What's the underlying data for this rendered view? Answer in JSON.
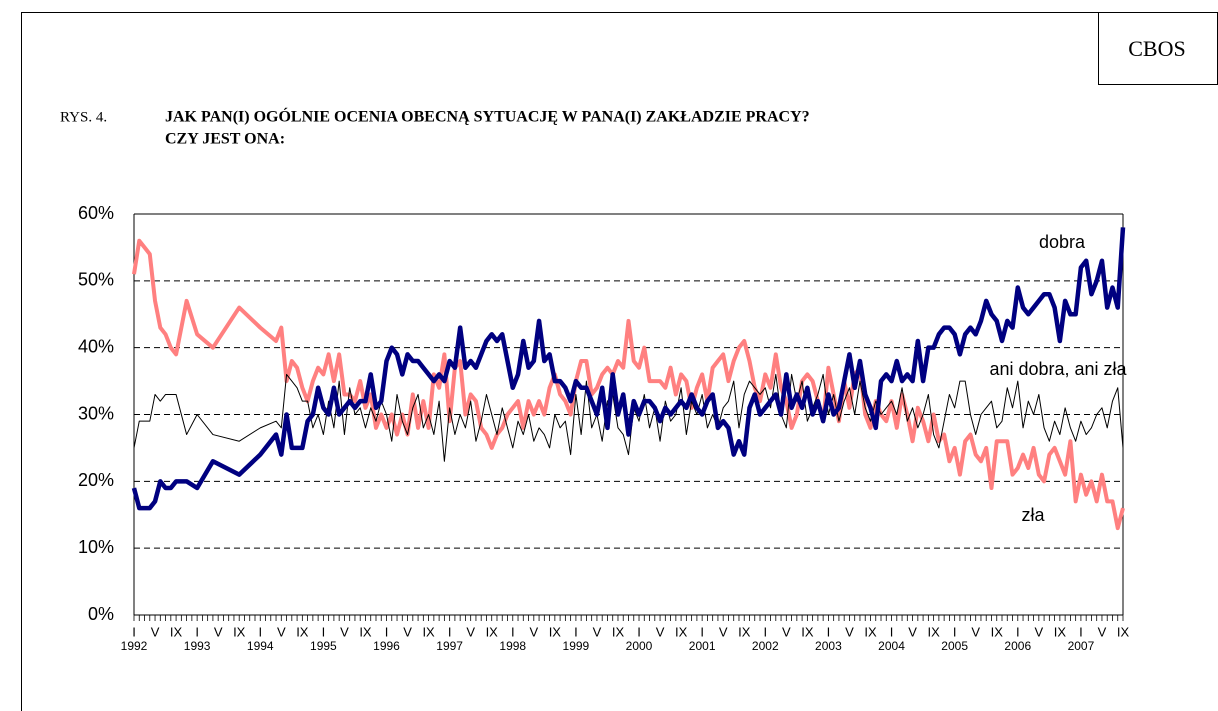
{
  "chart_data": {
    "type": "line",
    "badge": "CBOS",
    "figure_label": "RYS. 4.",
    "title": [
      "JAK PAN(I) OGÓLNIE OCENIA OBECNĄ SYTUACJĘ W PANA(I) ZAKŁADZIE PRACY?",
      "CZY JEST ONA:"
    ],
    "x": [
      "1992-01",
      "1992-02",
      "1992-03",
      "1992-04",
      "1992-05",
      "1992-06",
      "1992-07",
      "1992-08",
      "1992-09",
      "1992-11",
      "1993-01",
      "1993-04",
      "1993-09",
      "1994-01",
      "1994-04",
      "1994-05",
      "1994-06",
      "1994-07",
      "1994-08",
      "1994-09",
      "1994-10",
      "1994-11",
      "1994-12",
      "1995-01",
      "1995-02",
      "1995-03",
      "1995-04",
      "1995-05",
      "1995-06",
      "1995-07",
      "1995-08",
      "1995-09",
      "1995-10",
      "1995-11",
      "1995-12",
      "1996-01",
      "1996-02",
      "1996-03",
      "1996-04",
      "1996-05",
      "1996-06",
      "1996-07",
      "1996-08",
      "1996-09",
      "1996-10",
      "1996-11",
      "1996-12",
      "1997-01",
      "1997-02",
      "1997-03",
      "1997-04",
      "1997-05",
      "1997-06",
      "1997-07",
      "1997-08",
      "1997-09",
      "1997-10",
      "1997-11",
      "1997-12",
      "1998-01",
      "1998-02",
      "1998-03",
      "1998-04",
      "1998-05",
      "1998-06",
      "1998-07",
      "1998-08",
      "1998-09",
      "1998-10",
      "1998-11",
      "1998-12",
      "1999-01",
      "1999-02",
      "1999-03",
      "1999-04",
      "1999-05",
      "1999-06",
      "1999-07",
      "1999-08",
      "1999-09",
      "1999-10",
      "1999-11",
      "1999-12",
      "2000-01",
      "2000-02",
      "2000-03",
      "2000-04",
      "2000-05",
      "2000-06",
      "2000-07",
      "2000-08",
      "2000-09",
      "2000-10",
      "2000-11",
      "2000-12",
      "2001-01",
      "2001-02",
      "2001-03",
      "2001-04",
      "2001-05",
      "2001-06",
      "2001-07",
      "2001-08",
      "2001-09",
      "2001-10",
      "2001-11",
      "2001-12",
      "2002-01",
      "2002-02",
      "2002-03",
      "2002-04",
      "2002-05",
      "2002-06",
      "2002-07",
      "2002-08",
      "2002-09",
      "2002-10",
      "2002-11",
      "2002-12",
      "2003-01",
      "2003-02",
      "2003-03",
      "2003-04",
      "2003-05",
      "2003-06",
      "2003-07",
      "2003-08",
      "2003-09",
      "2003-10",
      "2003-11",
      "2003-12",
      "2004-01",
      "2004-02",
      "2004-03",
      "2004-04",
      "2004-05",
      "2004-06",
      "2004-07",
      "2004-08",
      "2004-09",
      "2004-10",
      "2004-11",
      "2004-12",
      "2005-01",
      "2005-02",
      "2005-03",
      "2005-04",
      "2005-05",
      "2005-06",
      "2005-07",
      "2005-08",
      "2005-09",
      "2005-10",
      "2005-11",
      "2005-12",
      "2006-01",
      "2006-02",
      "2006-03",
      "2006-04",
      "2006-05",
      "2006-06",
      "2006-07",
      "2006-08",
      "2006-09",
      "2006-10",
      "2006-11",
      "2006-12",
      "2007-01",
      "2007-02",
      "2007-03",
      "2007-04",
      "2007-05",
      "2007-06",
      "2007-07",
      "2007-08",
      "2007-09"
    ],
    "series": [
      {
        "name": "dobra",
        "color": "#000080",
        "width": 4.5,
        "values": [
          19,
          16,
          16,
          16,
          17,
          20,
          19,
          19,
          20,
          20,
          19,
          23,
          21,
          24,
          27,
          24,
          30,
          25,
          25,
          25,
          29,
          30,
          34,
          31,
          30,
          34,
          30,
          31,
          32,
          31,
          32,
          32,
          36,
          31,
          32,
          38,
          40,
          39,
          36,
          39,
          38,
          38,
          37,
          36,
          35,
          36,
          35,
          38,
          37,
          43,
          37,
          38,
          37,
          39,
          41,
          42,
          41,
          42,
          38,
          34,
          36,
          41,
          37,
          38,
          44,
          38,
          39,
          35,
          35,
          34,
          32,
          35,
          34,
          34,
          32,
          30,
          34,
          28,
          36,
          30,
          33,
          27,
          32,
          30,
          32,
          32,
          31,
          29,
          31,
          30,
          31,
          32,
          31,
          33,
          31,
          30,
          32,
          33,
          28,
          29,
          28,
          24,
          26,
          24,
          31,
          33,
          30,
          31,
          32,
          33,
          30,
          36,
          31,
          33,
          31,
          34,
          30,
          32,
          29,
          33,
          30,
          31,
          35,
          39,
          34,
          38,
          33,
          31,
          28,
          35,
          36,
          35,
          38,
          35,
          36,
          35,
          41,
          35,
          40,
          40,
          42,
          43,
          43,
          42,
          39,
          42,
          43,
          42,
          44,
          47,
          45,
          44,
          41,
          44,
          43,
          49,
          46,
          45,
          46,
          47,
          48,
          48,
          46,
          41,
          47,
          45,
          45,
          52,
          53,
          48,
          50,
          53,
          46,
          49,
          46,
          58
        ]
      },
      {
        "name": "zła",
        "color": "#ff8080",
        "width": 4,
        "values": [
          51,
          56,
          55,
          54,
          47,
          43,
          42,
          40,
          39,
          47,
          42,
          40,
          46,
          43,
          41,
          43,
          35,
          38,
          37,
          34,
          32,
          35,
          37,
          36,
          39,
          35,
          39,
          33,
          33,
          32,
          35,
          31,
          33,
          28,
          30,
          28,
          30,
          27,
          30,
          27,
          33,
          28,
          32,
          28,
          36,
          34,
          39,
          29,
          37,
          38,
          30,
          33,
          32,
          28,
          27,
          25,
          27,
          28,
          30,
          31,
          32,
          28,
          32,
          30,
          32,
          30,
          34,
          36,
          33,
          32,
          30,
          35,
          38,
          38,
          33,
          34,
          36,
          37,
          36,
          38,
          37,
          44,
          38,
          37,
          40,
          35,
          35,
          35,
          34,
          37,
          33,
          36,
          35,
          31,
          34,
          36,
          32,
          37,
          38,
          39,
          35,
          38,
          40,
          41,
          38,
          34,
          32,
          36,
          34,
          39,
          34,
          32,
          28,
          30,
          35,
          36,
          35,
          32,
          29,
          37,
          33,
          29,
          35,
          31,
          36,
          37,
          30,
          28,
          32,
          30,
          29,
          32,
          28,
          33,
          30,
          26,
          31,
          29,
          26,
          30,
          26,
          27,
          23,
          25,
          21,
          26,
          27,
          24,
          23,
          25,
          19,
          26,
          26,
          26,
          21,
          22,
          24,
          22,
          25,
          21,
          20,
          24,
          25,
          23,
          21,
          26,
          17,
          21,
          18,
          20,
          17,
          21,
          17,
          17,
          13,
          16
        ]
      },
      {
        "name": "ani dobra, ani zła",
        "color": "#000000",
        "width": 1,
        "values": [
          25,
          29,
          29,
          29,
          33,
          32,
          33,
          33,
          33,
          27,
          30,
          27,
          26,
          28,
          29,
          28,
          36,
          35,
          34,
          32,
          32,
          28,
          30,
          27,
          32,
          28,
          35,
          27,
          34,
          30,
          31,
          28,
          31,
          29,
          32,
          30,
          26,
          33,
          29,
          27,
          31,
          33,
          28,
          30,
          27,
          32,
          23,
          31,
          27,
          30,
          28,
          32,
          26,
          29,
          33,
          30,
          27,
          31,
          28,
          25,
          29,
          27,
          30,
          26,
          28,
          27,
          25,
          30,
          28,
          29,
          24,
          33,
          27,
          35,
          28,
          30,
          26,
          32,
          33,
          28,
          27,
          24,
          31,
          29,
          33,
          28,
          31,
          26,
          32,
          29,
          30,
          34,
          27,
          32,
          30,
          33,
          28,
          30,
          28,
          31,
          32,
          35,
          28,
          33,
          35,
          34,
          33,
          34,
          31,
          36,
          30,
          28,
          36,
          32,
          35,
          29,
          31,
          33,
          36,
          30,
          33,
          29,
          32,
          34,
          30,
          35,
          31,
          29,
          32,
          30,
          31,
          32,
          30,
          34,
          29,
          31,
          28,
          30,
          33,
          27,
          25,
          29,
          33,
          31,
          35,
          35,
          30,
          27,
          30,
          31,
          32,
          28,
          29,
          34,
          31,
          35,
          28,
          32,
          30,
          33,
          28,
          26,
          29,
          27,
          31,
          28,
          26,
          29,
          27,
          28,
          30,
          31,
          28,
          32,
          34,
          25
        ]
      }
    ],
    "xlim": [
      "1992-01",
      "2007-09"
    ],
    "xticks": [
      {
        "value": "1992-01",
        "label": "I"
      },
      {
        "value": "1992-05",
        "label": "V"
      },
      {
        "value": "1992-09",
        "label": "IX"
      },
      {
        "value": "1993-01",
        "label": "I"
      },
      {
        "value": "1993-05",
        "label": "V"
      },
      {
        "value": "1993-09",
        "label": "IX"
      },
      {
        "value": "1994-01",
        "label": "I"
      },
      {
        "value": "1994-05",
        "label": "V"
      },
      {
        "value": "1994-09",
        "label": "IX"
      },
      {
        "value": "1995-01",
        "label": "I"
      },
      {
        "value": "1995-05",
        "label": "V"
      },
      {
        "value": "1995-09",
        "label": "IX"
      },
      {
        "value": "1996-01",
        "label": "I"
      },
      {
        "value": "1996-05",
        "label": "V"
      },
      {
        "value": "1996-09",
        "label": "IX"
      },
      {
        "value": "1997-01",
        "label": "I"
      },
      {
        "value": "1997-05",
        "label": "V"
      },
      {
        "value": "1997-09",
        "label": "IX"
      },
      {
        "value": "1998-01",
        "label": "I"
      },
      {
        "value": "1998-05",
        "label": "V"
      },
      {
        "value": "1998-09",
        "label": "IX"
      },
      {
        "value": "1999-01",
        "label": "I"
      },
      {
        "value": "1999-05",
        "label": "V"
      },
      {
        "value": "1999-09",
        "label": "IX"
      },
      {
        "value": "2000-01",
        "label": "I"
      },
      {
        "value": "2000-05",
        "label": "V"
      },
      {
        "value": "2000-09",
        "label": "IX"
      },
      {
        "value": "2001-01",
        "label": "I"
      },
      {
        "value": "2001-05",
        "label": "V"
      },
      {
        "value": "2001-09",
        "label": "IX"
      },
      {
        "value": "2002-01",
        "label": "I"
      },
      {
        "value": "2002-05",
        "label": "V"
      },
      {
        "value": "2002-09",
        "label": "IX"
      },
      {
        "value": "2003-01",
        "label": "I"
      },
      {
        "value": "2003-05",
        "label": "V"
      },
      {
        "value": "2003-09",
        "label": "IX"
      },
      {
        "value": "2004-01",
        "label": "I"
      },
      {
        "value": "2004-05",
        "label": "V"
      },
      {
        "value": "2004-09",
        "label": "IX"
      },
      {
        "value": "2005-01",
        "label": "I"
      },
      {
        "value": "2005-05",
        "label": "V"
      },
      {
        "value": "2005-09",
        "label": "IX"
      },
      {
        "value": "2006-01",
        "label": "I"
      },
      {
        "value": "2006-05",
        "label": "V"
      },
      {
        "value": "2006-09",
        "label": "IX"
      },
      {
        "value": "2007-01",
        "label": "I"
      },
      {
        "value": "2007-05",
        "label": "V"
      },
      {
        "value": "2007-09",
        "label": "IX"
      }
    ],
    "year_labels": [
      {
        "value": "1992-01",
        "label": "1992"
      },
      {
        "value": "1993-01",
        "label": "1993"
      },
      {
        "value": "1994-01",
        "label": "1994"
      },
      {
        "value": "1995-01",
        "label": "1995"
      },
      {
        "value": "1996-01",
        "label": "1996"
      },
      {
        "value": "1997-01",
        "label": "1997"
      },
      {
        "value": "1998-01",
        "label": "1998"
      },
      {
        "value": "1999-01",
        "label": "1999"
      },
      {
        "value": "2000-01",
        "label": "2000"
      },
      {
        "value": "2001-01",
        "label": "2001"
      },
      {
        "value": "2002-01",
        "label": "2002"
      },
      {
        "value": "2003-01",
        "label": "2003"
      },
      {
        "value": "2004-01",
        "label": "2004"
      },
      {
        "value": "2005-01",
        "label": "2005"
      },
      {
        "value": "2006-01",
        "label": "2006"
      },
      {
        "value": "2007-01",
        "label": "2007"
      }
    ],
    "ylim": [
      0,
      60
    ],
    "yticks": [
      {
        "value": 0,
        "label": "0%"
      },
      {
        "value": 10,
        "label": "10%"
      },
      {
        "value": 20,
        "label": "20%"
      },
      {
        "value": 30,
        "label": "30%"
      },
      {
        "value": 40,
        "label": "40%"
      },
      {
        "value": 50,
        "label": "50%"
      },
      {
        "value": 60,
        "label": "60%"
      }
    ],
    "grid": true
  }
}
